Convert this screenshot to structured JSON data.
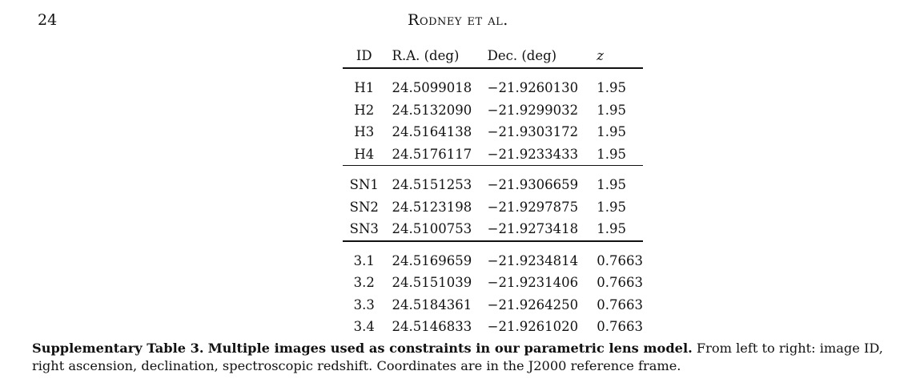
{
  "header": {
    "page_number": "24",
    "running_head": "Rodney et al."
  },
  "table": {
    "columns": [
      "ID",
      "R.A. (deg)",
      "Dec. (deg)",
      "z"
    ],
    "groups": [
      {
        "rows": [
          {
            "id": "H1",
            "ra": "24.5099018",
            "dec": "−21.9260130",
            "z": "1.95"
          },
          {
            "id": "H2",
            "ra": "24.5132090",
            "dec": "−21.9299032",
            "z": "1.95"
          },
          {
            "id": "H3",
            "ra": "24.5164138",
            "dec": "−21.9303172",
            "z": "1.95"
          },
          {
            "id": "H4",
            "ra": "24.5176117",
            "dec": "−21.9233433",
            "z": "1.95"
          }
        ]
      },
      {
        "rows": [
          {
            "id": "SN1",
            "ra": "24.5151253",
            "dec": "−21.9306659",
            "z": "1.95"
          },
          {
            "id": "SN2",
            "ra": "24.5123198",
            "dec": "−21.9297875",
            "z": "1.95"
          },
          {
            "id": "SN3",
            "ra": "24.5100753",
            "dec": "−21.9273418",
            "z": "1.95"
          }
        ]
      },
      {
        "rows": [
          {
            "id": "3.1",
            "ra": "24.5169659",
            "dec": "−21.9234814",
            "z": "0.7663"
          },
          {
            "id": "3.2",
            "ra": "24.5151039",
            "dec": "−21.9231406",
            "z": "0.7663"
          },
          {
            "id": "3.3",
            "ra": "24.5184361",
            "dec": "−21.9264250",
            "z": "0.7663"
          },
          {
            "id": "3.4",
            "ra": "24.5146833",
            "dec": "−21.9261020",
            "z": "0.7663"
          }
        ]
      }
    ]
  },
  "caption": {
    "label": "Supplementary Table 3.",
    "title": "Multiple images used as constraints in our parametric lens model.",
    "body": "From left to right: image ID, right ascension, declination, spectroscopic redshift. Coordinates are in the J2000 reference frame."
  }
}
